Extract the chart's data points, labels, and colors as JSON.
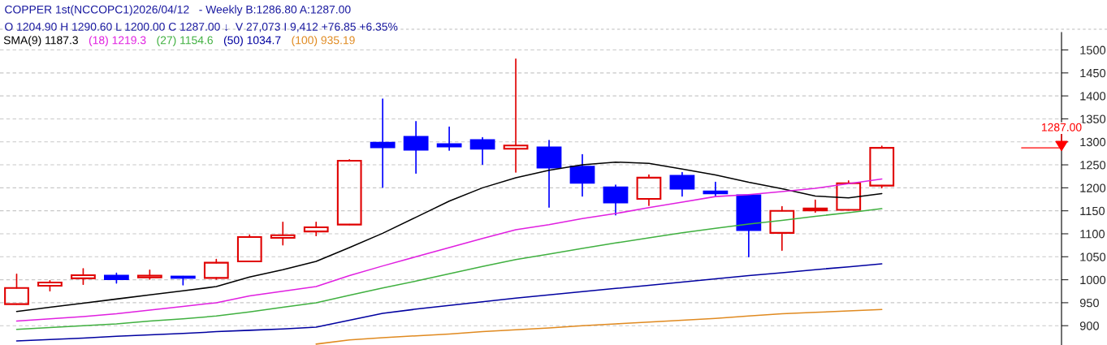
{
  "chart_data": {
    "type": "candlestick",
    "title": "COPPER 1st(NCCOPC1)2026/04/12   - Weekly B:1286.80 A:1287.00",
    "subtitle": "O 1204.90 H 1290.60 L 1200.00 C 1287.00 ↓  V 27,073 I 9,412 +76.85 +6.35%",
    "categories": [
      null,
      null,
      null,
      null,
      null,
      null,
      null,
      null,
      null,
      null,
      null,
      null,
      null,
      null,
      null,
      null,
      null,
      null,
      null,
      null,
      null,
      null,
      null,
      null,
      null,
      null,
      null
    ],
    "ohlc": [
      [
        947,
        1012,
        947,
        982
      ],
      [
        987,
        998,
        976,
        994
      ],
      [
        1003,
        1024,
        990,
        1010
      ],
      [
        1009,
        1014,
        993,
        1001
      ],
      [
        1005,
        1021,
        1001,
        1009
      ],
      [
        1007,
        1007,
        989,
        1004
      ],
      [
        1004,
        1044,
        1001,
        1037
      ],
      [
        1040,
        1097,
        1040,
        1093
      ],
      [
        1091,
        1125,
        1076,
        1097
      ],
      [
        1105,
        1125,
        1096,
        1114
      ],
      [
        1120,
        1261,
        1120,
        1259
      ],
      [
        1298,
        1393,
        1201,
        1288
      ],
      [
        1311,
        1344,
        1232,
        1283
      ],
      [
        1295,
        1332,
        1282,
        1290
      ],
      [
        1304,
        1309,
        1251,
        1285
      ],
      [
        1285,
        1480,
        1234,
        1292
      ],
      [
        1288,
        1303,
        1158,
        1244
      ],
      [
        1246,
        1272,
        1182,
        1211
      ],
      [
        1201,
        1206,
        1141,
        1168
      ],
      [
        1176,
        1228,
        1162,
        1222
      ],
      [
        1226,
        1233,
        1182,
        1198
      ],
      [
        1192,
        1212,
        1181,
        1188
      ],
      [
        1184,
        1184,
        1050,
        1108
      ],
      [
        1102,
        1159,
        1064,
        1150
      ],
      [
        1151,
        1173,
        1147,
        1155
      ],
      [
        1152,
        1215,
        1152,
        1210
      ],
      [
        1204.9,
        1290.6,
        1200.0,
        1287.0
      ]
    ],
    "colors": [
      "#e00000",
      "#e00000",
      "#e00000",
      "#0000ff",
      "#e00000",
      "#0000ff",
      "#e00000",
      "#e00000",
      "#e00000",
      "#e00000",
      "#e00000",
      "#0000ff",
      "#0000ff",
      "#0000ff",
      "#0000ff",
      "#e00000",
      "#0000ff",
      "#0000ff",
      "#0000ff",
      "#e00000",
      "#0000ff",
      "#0000ff",
      "#0000ff",
      "#e00000",
      "#e00000",
      "#e00000",
      "#e00000"
    ],
    "series": [
      {
        "type": "line",
        "name": "SMA(9) 1187.3",
        "color": "#000000",
        "values": [
          931,
          940,
          949,
          958,
          967,
          976,
          985,
          1006,
          1022,
          1040,
          1070,
          1101,
          1136,
          1171,
          1200,
          1222,
          1238,
          1250,
          1256,
          1253,
          1241,
          1228,
          1212,
          1198,
          1182,
          1178,
          1187.3
        ]
      },
      {
        "type": "line",
        "name": "(18) 1219.3",
        "color": "#e020e0",
        "values": [
          910,
          915,
          920,
          926,
          934,
          942,
          950,
          965,
          975,
          985,
          1009,
          1030,
          1050,
          1070,
          1090,
          1109,
          1120,
          1133,
          1144,
          1157,
          1169,
          1181,
          1185,
          1192,
          1199,
          1209,
          1219.3
        ]
      },
      {
        "type": "line",
        "name": "(27) 1154.6",
        "color": "#40b040",
        "values": [
          892,
          896,
          900,
          904,
          910,
          915,
          921,
          930,
          940,
          950,
          966,
          982,
          997,
          1013,
          1029,
          1044,
          1056,
          1068,
          1080,
          1091,
          1102,
          1112,
          1121,
          1129,
          1138,
          1146,
          1154.6
        ]
      },
      {
        "type": "line",
        "name": "(50) 1034.7",
        "color": "#0000a0",
        "values": [
          867,
          870,
          873,
          877,
          880,
          883,
          887,
          890,
          893,
          897,
          912,
          927,
          936,
          944,
          952,
          960,
          967,
          974,
          981,
          988,
          995,
          1002,
          1009,
          1015,
          1022,
          1028,
          1034.7
        ]
      },
      {
        "type": "line",
        "name": "(100) 935.19",
        "color": "#e08a20",
        "values": [
          null,
          null,
          null,
          null,
          null,
          null,
          null,
          null,
          null,
          860,
          869,
          874,
          878,
          882,
          887,
          891,
          895,
          900,
          904,
          908,
          912,
          916,
          921,
          926,
          929,
          932,
          935.19
        ]
      }
    ],
    "ylim": [
      858,
      1538
    ],
    "yticks": [
      900,
      950,
      1000,
      1050,
      1100,
      1150,
      1200,
      1250,
      1300,
      1350,
      1400,
      1450,
      1500
    ],
    "ref_lines": [
      {
        "axis": "y",
        "value": 1287,
        "label": "1287.00",
        "color": "#ff0000"
      }
    ],
    "grid": "y",
    "tick_labels": "y"
  }
}
